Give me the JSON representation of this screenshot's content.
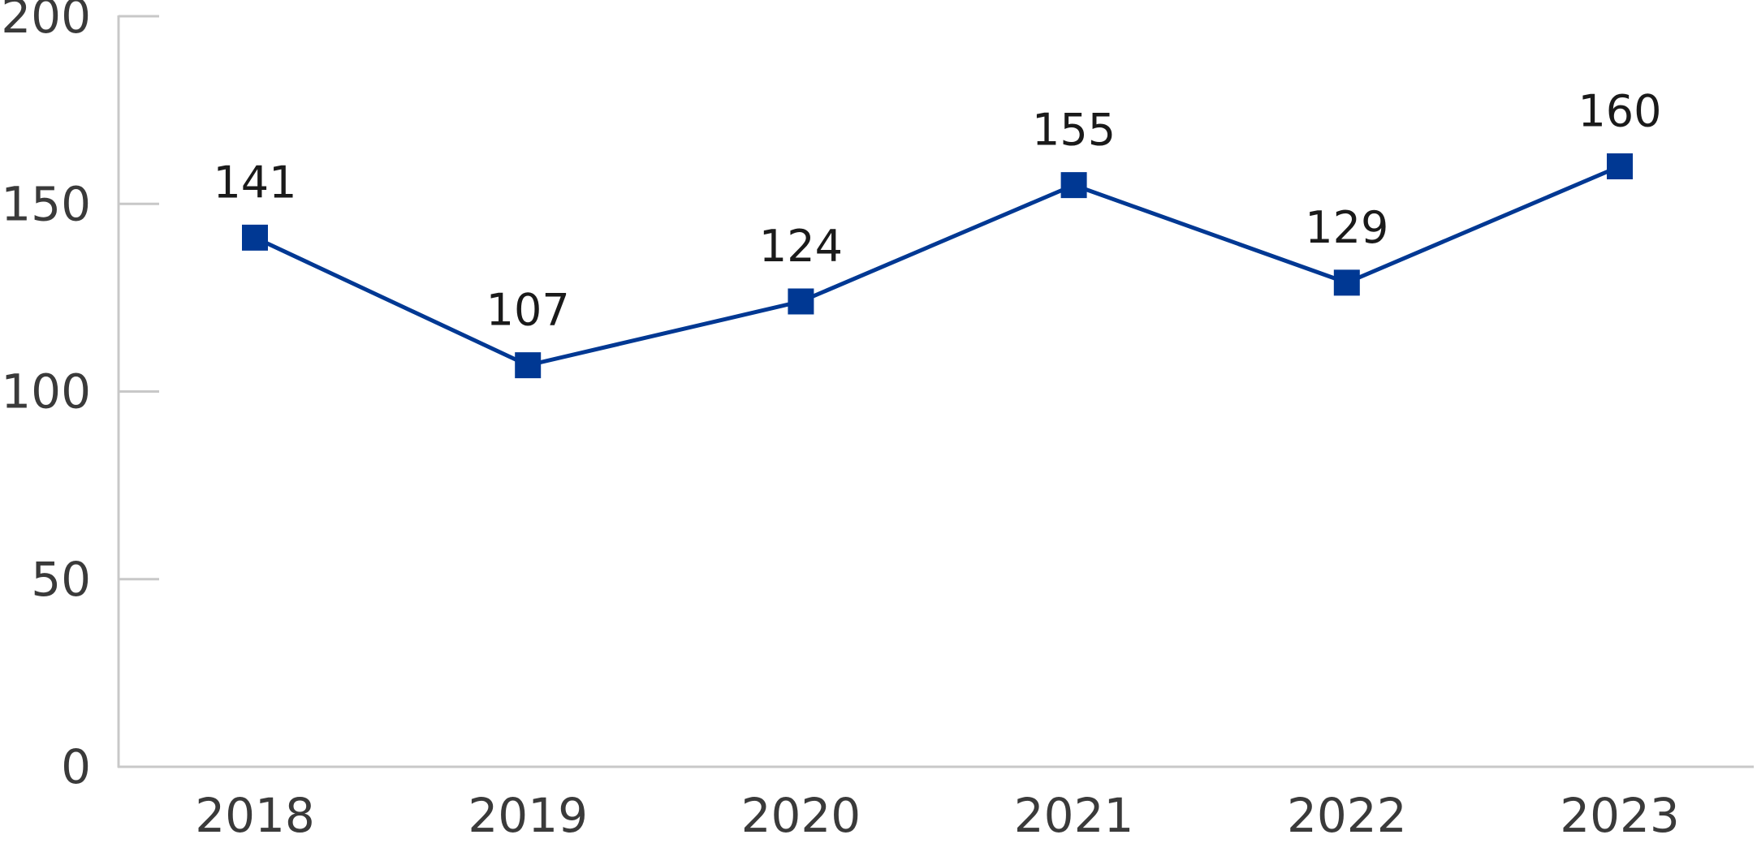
{
  "chart_data": {
    "type": "line",
    "categories": [
      "2018",
      "2019",
      "2020",
      "2021",
      "2022",
      "2023"
    ],
    "series": [
      {
        "values": [
          141,
          107,
          124,
          155,
          129,
          160
        ],
        "data_labels": [
          "141",
          "107",
          "124",
          "155",
          "129",
          "160"
        ],
        "color": "#003893",
        "marker": "square"
      }
    ],
    "ylim": [
      0,
      200
    ],
    "yticks": [
      0,
      50,
      100,
      150,
      200
    ],
    "ytick_labels": [
      "0",
      "50",
      "100",
      "150",
      "200"
    ],
    "title": "",
    "xlabel": "",
    "ylabel": "",
    "grid": false,
    "legend": "none",
    "axis_color": "#c8c8c8",
    "tick_text_color": "#3a3a3a",
    "label_text_color": "#1a1a1a"
  }
}
